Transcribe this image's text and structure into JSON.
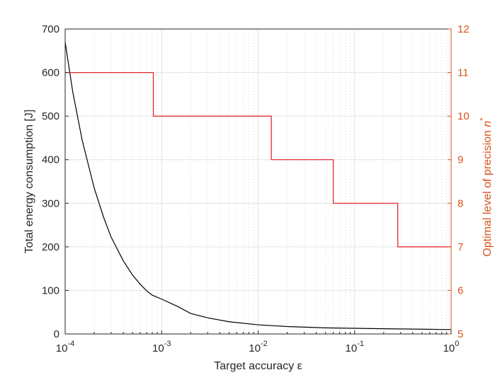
{
  "chart_data": {
    "type": "line",
    "xscale": "log",
    "xlim": [
      0.0001,
      1
    ],
    "xlabel": "Target accuracy ε",
    "x_ticks": [
      {
        "value": 0.0001,
        "base": "10",
        "exp": "-4"
      },
      {
        "value": 0.001,
        "base": "10",
        "exp": "-3"
      },
      {
        "value": 0.01,
        "base": "10",
        "exp": "-2"
      },
      {
        "value": 0.1,
        "base": "10",
        "exp": "-1"
      },
      {
        "value": 1,
        "base": "10",
        "exp": "0"
      }
    ],
    "y_left": {
      "label": "Total energy consumption [J]",
      "lim": [
        0,
        700
      ],
      "ticks": [
        0,
        100,
        200,
        300,
        400,
        500,
        600,
        700
      ]
    },
    "y_right": {
      "label_text": "Optimal level of precision ",
      "label_var": "n",
      "label_sup": "*",
      "lim": [
        5,
        12
      ],
      "ticks": [
        5,
        6,
        7,
        8,
        9,
        10,
        11,
        12
      ]
    },
    "grid": true,
    "series": [
      {
        "axis": "left",
        "color": "#000000",
        "x": [
          0.0001,
          0.00012,
          0.00015,
          0.0002,
          0.00025,
          0.0003,
          0.0004,
          0.0005,
          0.0006,
          0.0007,
          0.0008,
          0.001,
          0.0015,
          0.002,
          0.003,
          0.005,
          0.01,
          0.02,
          0.05,
          0.1,
          0.2,
          0.5,
          1
        ],
        "y": [
          670,
          555,
          445,
          335,
          268,
          222,
          168,
          135,
          114,
          99,
          89,
          80,
          62,
          47,
          37,
          28,
          21,
          17,
          14,
          13,
          12,
          11,
          10
        ]
      },
      {
        "axis": "right",
        "color": "#e41a1c",
        "x": [
          0.0001,
          0.00082,
          0.00082,
          0.0137,
          0.0137,
          0.06,
          0.06,
          0.28,
          0.28,
          1
        ],
        "y": [
          11,
          11,
          10,
          10,
          9,
          9,
          8,
          8,
          7,
          7
        ]
      }
    ],
    "colors": {
      "right_axis": "#d95319",
      "grid": "#e3e3e3"
    }
  }
}
